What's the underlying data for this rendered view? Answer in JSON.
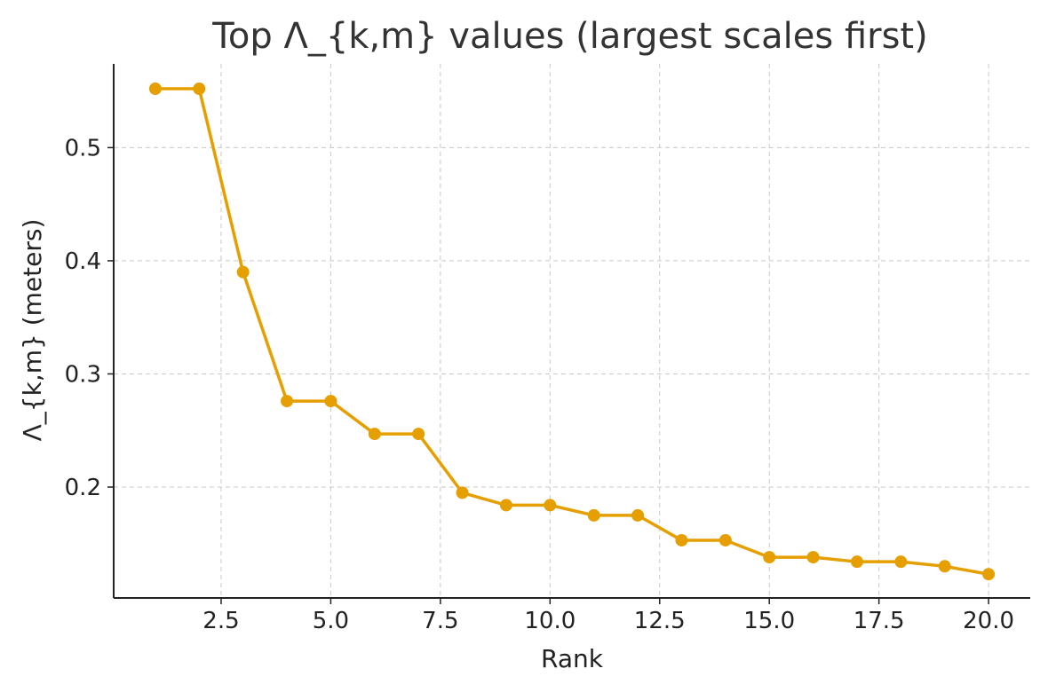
{
  "chart_data": {
    "type": "line",
    "title": "Top Λ_{k,m} values (largest scales first)",
    "xlabel": "Rank",
    "ylabel": "Λ_{k,m} (meters)",
    "xlim": [
      0.05,
      20.95
    ],
    "ylim": [
      0.102,
      0.574
    ],
    "x_ticks": [
      2.5,
      5.0,
      7.5,
      10.0,
      12.5,
      15.0,
      17.5,
      20.0
    ],
    "x_tick_labels": [
      "2.5",
      "5.0",
      "7.5",
      "10.0",
      "12.5",
      "15.0",
      "17.5",
      "20.0"
    ],
    "y_ticks": [
      0.2,
      0.3,
      0.4,
      0.5
    ],
    "y_tick_labels": [
      "0.2",
      "0.3",
      "0.4",
      "0.5"
    ],
    "grid": true,
    "legend": "none",
    "color": "#E69F00",
    "series": [
      {
        "x": [
          1,
          2,
          3,
          4,
          5,
          6,
          7,
          8,
          9,
          10,
          11,
          12,
          13,
          14,
          15,
          16,
          17,
          18,
          19,
          20
        ],
        "values": [
          0.552,
          0.552,
          0.39,
          0.276,
          0.276,
          0.247,
          0.247,
          0.195,
          0.184,
          0.184,
          0.175,
          0.175,
          0.153,
          0.153,
          0.138,
          0.138,
          0.134,
          0.134,
          0.13,
          0.123
        ]
      }
    ]
  }
}
